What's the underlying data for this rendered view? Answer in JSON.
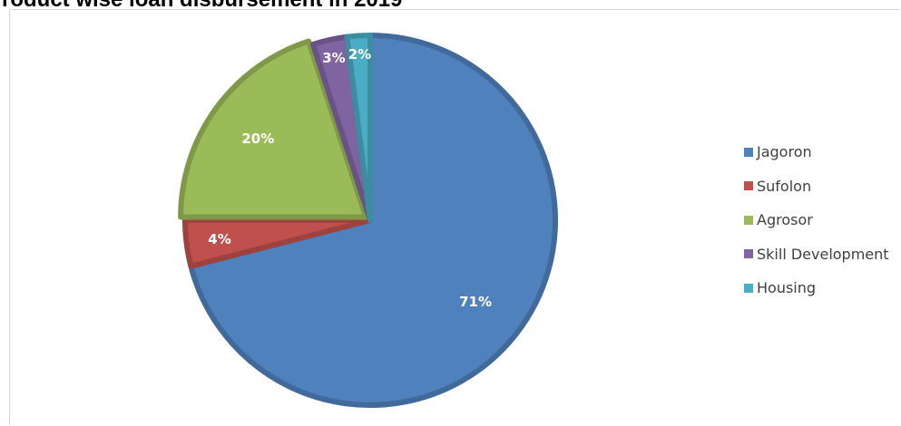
{
  "chart_data": {
    "type": "pie",
    "title": "roduct wise loan disbursement in 2019",
    "categories": [
      "Jagoron",
      "Sufolon",
      "Agrosor",
      "Skill Development",
      "Housing"
    ],
    "values": [
      71,
      4,
      20,
      3,
      2
    ],
    "labels": [
      "71%",
      "4%",
      "20%",
      "3%",
      "2%"
    ],
    "colors": [
      "#4f81bd",
      "#c0504d",
      "#9bbb59",
      "#8064a2",
      "#4bacc6"
    ],
    "legend_position": "right",
    "start_angle_deg": 0,
    "direction": "clockwise",
    "exploded": [
      "Agrosor"
    ]
  }
}
